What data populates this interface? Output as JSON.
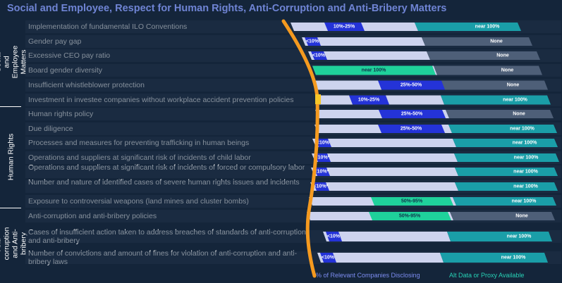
{
  "title": "Social and Employee, Respect for Human Rights, Anti-Corruption and Anti-Bribery Matters",
  "colors": {
    "background": "#14253a",
    "row_track": "#1f3147",
    "light": "#cdd3ee",
    "blue": "#2433d8",
    "green": "#1fd19b",
    "teal": "#1a9ea8",
    "gray": "#4e5f78",
    "orange": "#f59a1f",
    "yellow": "#f6c629"
  },
  "legend": {
    "disclosing": "% of Relevant Companies Disclosing",
    "proxy": "Alt Data or Proxy Available"
  },
  "groups": [
    {
      "label": "Social and Employee Matters"
    },
    {
      "label": "Human Rights"
    },
    {
      "label": "Anti-corruption and Anti-bribery"
    }
  ],
  "chart_data": {
    "type": "bar",
    "rows": [
      {
        "label": "Implementation of fundamental ILO Conventions",
        "group": 0,
        "disclosing": "10%-25%",
        "band": "mid",
        "proxy": "near 100%"
      },
      {
        "label": "Gender pay gap",
        "group": 0,
        "disclosing": "<10%",
        "band": "low",
        "proxy": "None"
      },
      {
        "label": "Excessive CEO pay ratio",
        "group": 0,
        "disclosing": "<10%",
        "band": "low",
        "proxy": "None"
      },
      {
        "label": "Board gender diversity",
        "group": 0,
        "disclosing": "near 100%",
        "band": "full",
        "proxy": "None"
      },
      {
        "label": "Insufficient whistleblower protection",
        "group": 0,
        "disclosing": "25%-50%",
        "band": "high",
        "proxy": "None"
      },
      {
        "label": "Investment in investee companies without workplace accident prevention policies",
        "group": 0,
        "disclosing": "10%-25%",
        "band": "mid",
        "proxy": "near 100%"
      },
      {
        "label": "Human rights policy",
        "group": 1,
        "disclosing": "25%-50%",
        "band": "high",
        "proxy": "None"
      },
      {
        "label": "Due diligence",
        "group": 1,
        "disclosing": "25%-50%",
        "band": "high",
        "proxy": "near 100%"
      },
      {
        "label": "Processes and measures for preventing trafficking in human beings",
        "group": 1,
        "disclosing": "<10%",
        "band": "low",
        "proxy": "near 100%"
      },
      {
        "label": "Operations and suppliers at significant risk of incidents of child labor",
        "group": 1,
        "disclosing": "<10%*",
        "band": "low",
        "proxy": "near 100%"
      },
      {
        "label": "Operations and suppliers at significant risk of incidents of forced or compulsory labor",
        "group": 1,
        "disclosing": "<10%*",
        "band": "low",
        "proxy": "near 100%"
      },
      {
        "label": "Number and nature of identified cases of severe human rights issues and incidents",
        "group": 1,
        "disclosing": "<10%*",
        "band": "low",
        "proxy": "near 100%"
      },
      {
        "label": "Exposure to controversial weapons (land mines and cluster bombs)",
        "group": 1,
        "disclosing": "50%-95%",
        "band": "vhigh",
        "proxy": "near 100%"
      },
      {
        "label": "Anti-corruption and anti-bribery policies",
        "group": 2,
        "disclosing": "50%-95%",
        "band": "vhigh",
        "proxy": "None"
      },
      {
        "label": "Cases of insufficient action taken to address breaches of standards of anti-corruption and anti-bribery",
        "group": 2,
        "disclosing": "<10%",
        "band": "low",
        "proxy": "near 100%"
      },
      {
        "label": "Number of convictions and amount of fines for violation of anti-corruption and anti-bribery laws",
        "group": 2,
        "disclosing": "<10%",
        "band": "low",
        "proxy": "near 100%"
      }
    ]
  }
}
